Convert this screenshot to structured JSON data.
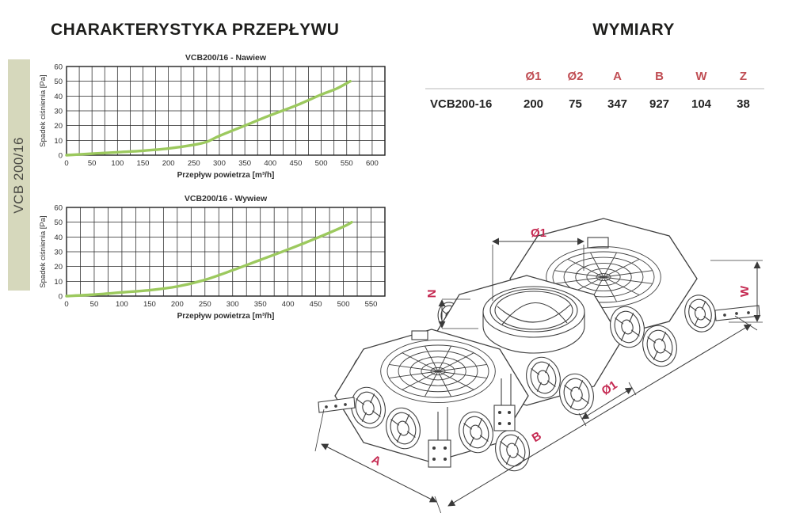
{
  "header": {
    "left_title": "CHARAKTERYSTYKA PRZEPŁYWU",
    "right_title": "WYMIARY"
  },
  "side_tab": {
    "label": "VCB 200/16"
  },
  "colors": {
    "curve_green": "#9cc95e",
    "table_header_red": "#c04e54",
    "drawing_label_red": "#c52a52",
    "side_tab_bg": "#d6d8bc",
    "grid_black": "#262626",
    "line_dark": "#3f3f3f",
    "text_dark": "#1d1d1b"
  },
  "dimensions_table": {
    "headers": [
      "Ø1",
      "Ø2",
      "A",
      "B",
      "W",
      "Z"
    ],
    "rows": [
      {
        "name": "VCB200-16",
        "values": [
          "200",
          "75",
          "347",
          "927",
          "104",
          "38"
        ]
      }
    ]
  },
  "drawing": {
    "labels": {
      "dia1_top": "Ø1",
      "n": "N",
      "w": "W",
      "dia1_side": "Ø1",
      "a": "A",
      "b": "B"
    }
  },
  "chart_data": [
    {
      "type": "line",
      "title": "VCB200/16 - Nawiew",
      "xlabel": "Przepływ powietrza [m³/h]",
      "ylabel": "Spadek ciśnienia [Pa]",
      "xlim": [
        0,
        625
      ],
      "ylim": [
        0,
        60
      ],
      "x_tick_step": 50,
      "x_tick_max": 600,
      "grid_x_step": 25,
      "grid_y_step": 10,
      "grid": true,
      "legend": false,
      "points": [
        [
          0,
          0
        ],
        [
          50,
          1
        ],
        [
          100,
          2
        ],
        [
          150,
          3
        ],
        [
          200,
          4.5
        ],
        [
          250,
          7
        ],
        [
          275,
          9
        ],
        [
          300,
          13
        ],
        [
          350,
          20
        ],
        [
          400,
          27
        ],
        [
          450,
          33.5
        ],
        [
          500,
          41
        ],
        [
          530,
          45
        ],
        [
          557,
          50
        ]
      ]
    },
    {
      "type": "line",
      "title": "VCB200/16 - Wywiew",
      "xlabel": "Przepływ powietrza [m³/h]",
      "ylabel": "Spadek ciśnienia [Pa]",
      "xlim": [
        0,
        575
      ],
      "ylim": [
        0,
        60
      ],
      "x_tick_step": 50,
      "x_tick_max": 550,
      "grid_x_step": 25,
      "grid_y_step": 10,
      "grid": true,
      "legend": false,
      "points": [
        [
          0,
          0
        ],
        [
          50,
          1
        ],
        [
          100,
          2.5
        ],
        [
          150,
          4
        ],
        [
          200,
          6.5
        ],
        [
          250,
          11
        ],
        [
          300,
          17.5
        ],
        [
          350,
          24.5
        ],
        [
          400,
          31.5
        ],
        [
          450,
          39
        ],
        [
          500,
          47
        ],
        [
          515,
          50
        ]
      ]
    }
  ]
}
